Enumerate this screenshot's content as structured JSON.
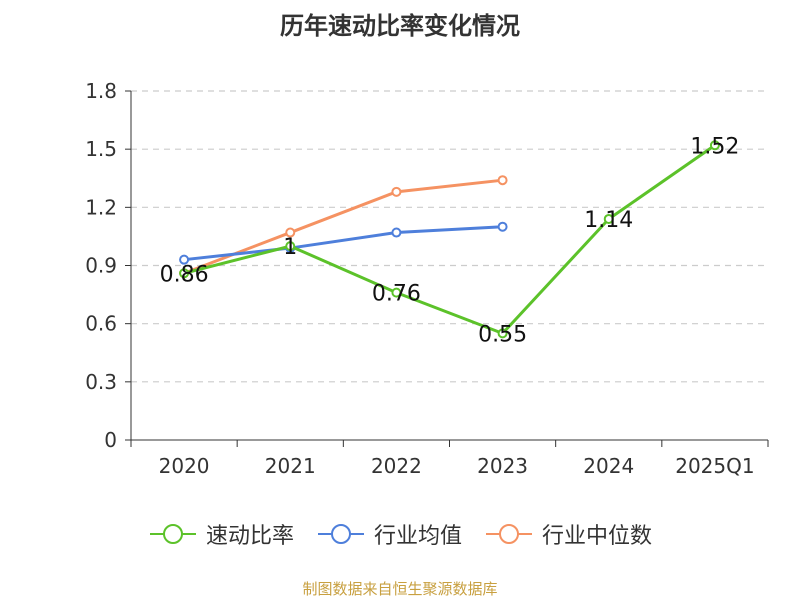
{
  "title": "历年速动比率变化情况",
  "source": "制图数据来自恒生聚源数据库",
  "chart_data": {
    "type": "line",
    "categories": [
      "2020",
      "2021",
      "2022",
      "2023",
      "2024",
      "2025Q1"
    ],
    "ylim": [
      0,
      1.8
    ],
    "yticks": [
      "0",
      "0.3",
      "0.6",
      "0.9",
      "1.2",
      "1.5",
      "1.8"
    ],
    "grid": true,
    "legend_position": "bottom",
    "series": [
      {
        "name": "速动比率",
        "color": "#5cc22a",
        "values": [
          0.86,
          1,
          0.76,
          0.55,
          1.14,
          1.52
        ],
        "labels": [
          "0.86",
          "1",
          "0.76",
          "0.55",
          "1.14",
          "1.52"
        ]
      },
      {
        "name": "行业均值",
        "color": "#4e7fdb",
        "values": [
          0.93,
          0.99,
          1.07,
          1.1,
          null,
          null
        ]
      },
      {
        "name": "行业中位数",
        "color": "#f59262",
        "values": [
          0.86,
          1.07,
          1.28,
          1.34,
          null,
          null
        ]
      }
    ]
  }
}
